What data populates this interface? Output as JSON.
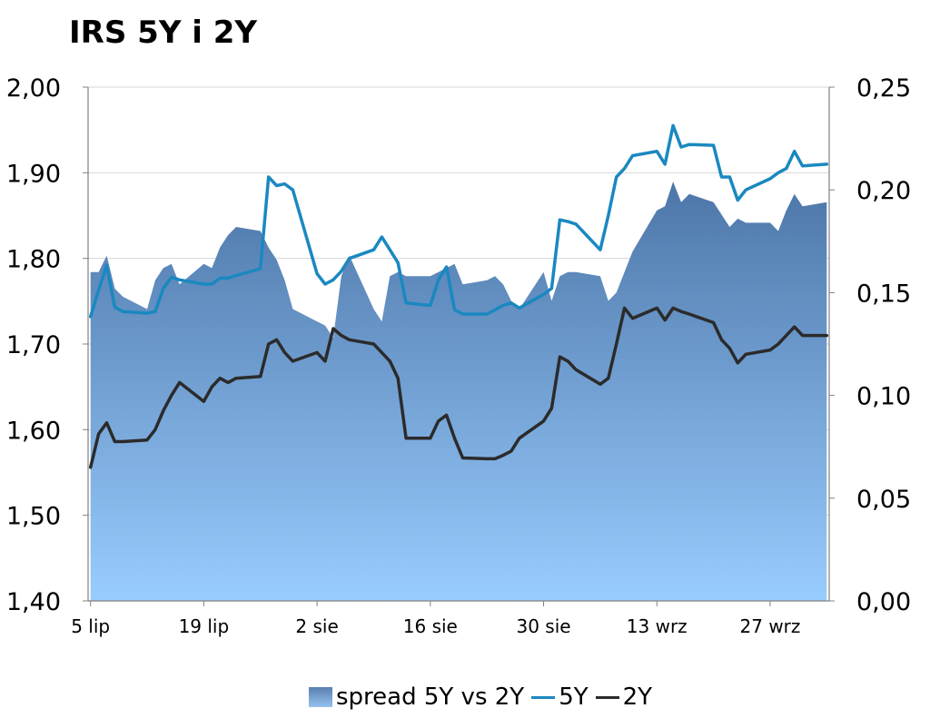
{
  "colors": {
    "spread_top": "#4d76a8",
    "spread_bottom": "#99ccff",
    "line_5y": "#1a88c0",
    "line_2y": "#2b2b2b"
  },
  "chart_data": {
    "type": "line",
    "title": "IRS 5Y i 2Y",
    "x_tick_labels": [
      "5 lip",
      "19 lip",
      "2 sie",
      "16 sie",
      "30 sie",
      "13 wrz",
      "27 wrz"
    ],
    "x_tick_dates": [
      "2010-07-05",
      "2010-07-19",
      "2010-08-02",
      "2010-08-16",
      "2010-08-30",
      "2010-09-13",
      "2010-09-27"
    ],
    "y_left": {
      "min": 1.4,
      "max": 2.0,
      "ticks": [
        "1,40",
        "1,50",
        "1,60",
        "1,70",
        "1,80",
        "1,90",
        "2,00"
      ]
    },
    "y_right": {
      "min": 0.0,
      "max": 0.25,
      "ticks": [
        "0,00",
        "0,05",
        "0,10",
        "0,15",
        "0,20",
        "0,25"
      ]
    },
    "grid": "horizontal",
    "legend_position": "bottom",
    "dates": [
      "2010-07-05",
      "2010-07-06",
      "2010-07-07",
      "2010-07-08",
      "2010-07-09",
      "2010-07-12",
      "2010-07-13",
      "2010-07-14",
      "2010-07-15",
      "2010-07-16",
      "2010-07-19",
      "2010-07-20",
      "2010-07-21",
      "2010-07-22",
      "2010-07-23",
      "2010-07-26",
      "2010-07-27",
      "2010-07-28",
      "2010-07-29",
      "2010-07-30",
      "2010-08-02",
      "2010-08-03",
      "2010-08-04",
      "2010-08-05",
      "2010-08-06",
      "2010-08-09",
      "2010-08-10",
      "2010-08-11",
      "2010-08-12",
      "2010-08-13",
      "2010-08-16",
      "2010-08-17",
      "2010-08-18",
      "2010-08-19",
      "2010-08-20",
      "2010-08-23",
      "2010-08-24",
      "2010-08-25",
      "2010-08-26",
      "2010-08-27",
      "2010-08-30",
      "2010-08-31",
      "2010-09-01",
      "2010-09-02",
      "2010-09-03",
      "2010-09-06",
      "2010-09-07",
      "2010-09-08",
      "2010-09-09",
      "2010-09-10",
      "2010-09-13",
      "2010-09-14",
      "2010-09-15",
      "2010-09-16",
      "2010-09-17",
      "2010-09-20",
      "2010-09-21",
      "2010-09-22",
      "2010-09-23",
      "2010-09-24",
      "2010-09-27",
      "2010-09-28",
      "2010-09-29",
      "2010-09-30",
      "2010-10-01",
      "2010-10-04"
    ],
    "series": [
      {
        "name": "spread 5Y vs 2Y",
        "axis": "right",
        "style": "area",
        "values": [
          0.16,
          0.16,
          0.168,
          0.152,
          0.148,
          0.142,
          0.156,
          0.162,
          0.164,
          0.154,
          0.164,
          0.162,
          0.172,
          0.178,
          0.182,
          0.18,
          0.172,
          0.166,
          0.156,
          0.142,
          0.136,
          0.134,
          0.128,
          0.158,
          0.168,
          0.142,
          0.136,
          0.158,
          0.16,
          0.158,
          0.158,
          0.16,
          0.162,
          0.164,
          0.154,
          0.156,
          0.158,
          0.154,
          0.146,
          0.142,
          0.16,
          0.146,
          0.158,
          0.16,
          0.16,
          0.158,
          0.146,
          0.15,
          0.16,
          0.17,
          0.19,
          0.192,
          0.204,
          0.194,
          0.198,
          0.194,
          0.188,
          0.182,
          0.186,
          0.184,
          0.184,
          0.18,
          0.19,
          0.198,
          0.192,
          0.194
        ]
      },
      {
        "name": "5Y",
        "axis": "left",
        "style": "line",
        "values": [
          1.732,
          1.763,
          1.792,
          1.743,
          1.738,
          1.736,
          1.738,
          1.765,
          1.778,
          1.775,
          1.77,
          1.77,
          1.777,
          1.777,
          1.78,
          1.788,
          1.895,
          1.885,
          1.887,
          1.88,
          1.782,
          1.77,
          1.775,
          1.785,
          1.8,
          1.81,
          1.825,
          1.81,
          1.795,
          1.748,
          1.745,
          1.775,
          1.79,
          1.74,
          1.735,
          1.735,
          1.74,
          1.745,
          1.748,
          1.742,
          1.758,
          1.765,
          1.845,
          1.843,
          1.84,
          1.81,
          1.85,
          1.895,
          1.905,
          1.92,
          1.925,
          1.91,
          1.955,
          1.93,
          1.933,
          1.932,
          1.895,
          1.895,
          1.868,
          1.88,
          1.893,
          1.9,
          1.905,
          1.925,
          1.908,
          1.91
        ]
      },
      {
        "name": "2Y",
        "axis": "left",
        "style": "line",
        "values": [
          1.556,
          1.595,
          1.608,
          1.586,
          1.586,
          1.588,
          1.6,
          1.622,
          1.64,
          1.655,
          1.633,
          1.65,
          1.66,
          1.655,
          1.66,
          1.662,
          1.7,
          1.705,
          1.69,
          1.68,
          1.69,
          1.68,
          1.718,
          1.71,
          1.705,
          1.7,
          1.69,
          1.68,
          1.66,
          1.59,
          1.59,
          1.61,
          1.617,
          1.59,
          1.567,
          1.566,
          1.566,
          1.57,
          1.575,
          1.59,
          1.61,
          1.625,
          1.685,
          1.68,
          1.67,
          1.653,
          1.66,
          1.7,
          1.742,
          1.73,
          1.742,
          1.728,
          1.742,
          1.738,
          1.735,
          1.725,
          1.705,
          1.695,
          1.678,
          1.688,
          1.693,
          1.7,
          1.71,
          1.72,
          1.71,
          1.71
        ]
      }
    ]
  }
}
